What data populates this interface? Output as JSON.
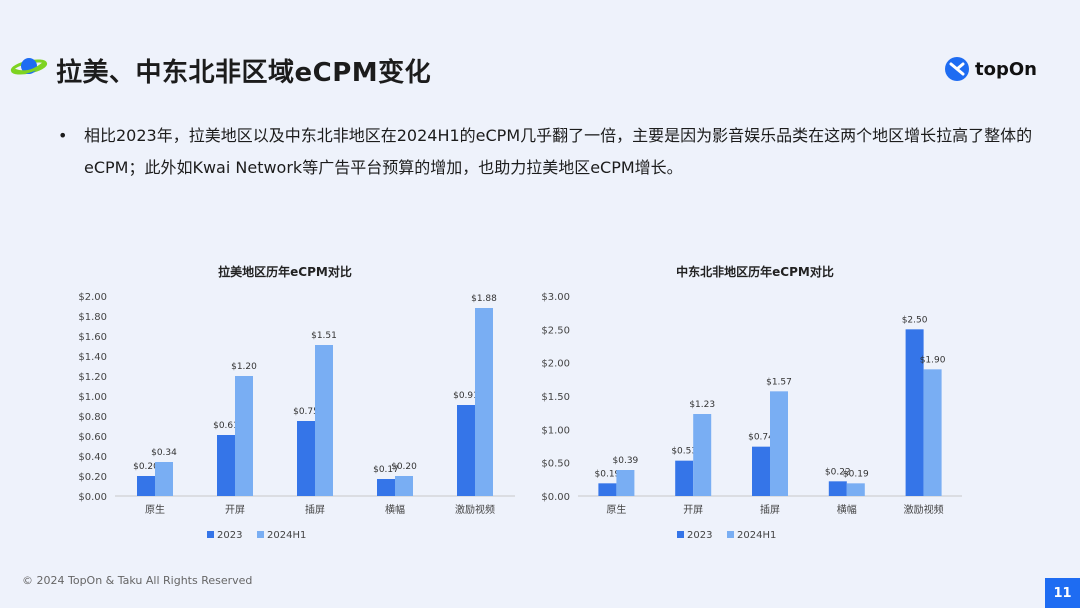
{
  "header": {
    "title": "拉美、中东北非区域eCPM变化",
    "logo_text": "topOn"
  },
  "bullet": {
    "marker": "•",
    "text": "相比2023年，拉美地区以及中东北非地区在2024H1的eCPM几乎翻了一倍，主要是因为影音娱乐品类在这两个地区增长拉高了整体的eCPM；此外如Kwai Network等广告平台预算的增加，也助力拉美地区eCPM增长。"
  },
  "colors": {
    "series_2023": "#3575e8",
    "series_2024H1": "#79aef3",
    "accent": "#1e6cf2"
  },
  "chart_data": [
    {
      "type": "bar",
      "title": "拉美地区历年eCPM对比",
      "categories": [
        "原生",
        "开屏",
        "插屏",
        "横幅",
        "激励视频"
      ],
      "series": [
        {
          "name": "2023",
          "values": [
            0.2,
            0.61,
            0.75,
            0.17,
            0.91
          ],
          "labels": [
            "$0.20",
            "$0.61",
            "$0.75",
            "$0.17",
            "$0.91"
          ]
        },
        {
          "name": "2024H1",
          "values": [
            0.34,
            1.2,
            1.51,
            0.2,
            1.88
          ],
          "labels": [
            "$0.34",
            "$1.20",
            "$1.51",
            "$0.20",
            "$1.88"
          ]
        }
      ],
      "ylim": [
        0,
        2.0
      ],
      "yticks": [
        "$0.00",
        "$0.20",
        "$0.40",
        "$0.60",
        "$0.80",
        "$1.00",
        "$1.20",
        "$1.40",
        "$1.60",
        "$1.80",
        "$2.00"
      ],
      "legend": "bottom"
    },
    {
      "type": "bar",
      "title": "中东北非地区历年eCPM对比",
      "categories": [
        "原生",
        "开屏",
        "插屏",
        "横幅",
        "激励视频"
      ],
      "series": [
        {
          "name": "2023",
          "values": [
            0.19,
            0.53,
            0.74,
            0.22,
            2.5
          ],
          "labels": [
            "$0.19",
            "$0.53",
            "$0.74",
            "$0.22",
            "$2.50"
          ]
        },
        {
          "name": "2024H1",
          "values": [
            0.39,
            1.23,
            1.57,
            0.19,
            1.9
          ],
          "labels": [
            "$0.39",
            "$1.23",
            "$1.57",
            "$0.19",
            "$1.90"
          ]
        }
      ],
      "ylim": [
        0,
        3.0
      ],
      "yticks": [
        "$0.00",
        "$0.50",
        "$1.00",
        "$1.50",
        "$2.00",
        "$2.50",
        "$3.00"
      ],
      "legend": "bottom"
    }
  ],
  "footer": {
    "copyright": "© 2024 TopOn & Taku All Rights Reserved",
    "page_number": "11"
  }
}
